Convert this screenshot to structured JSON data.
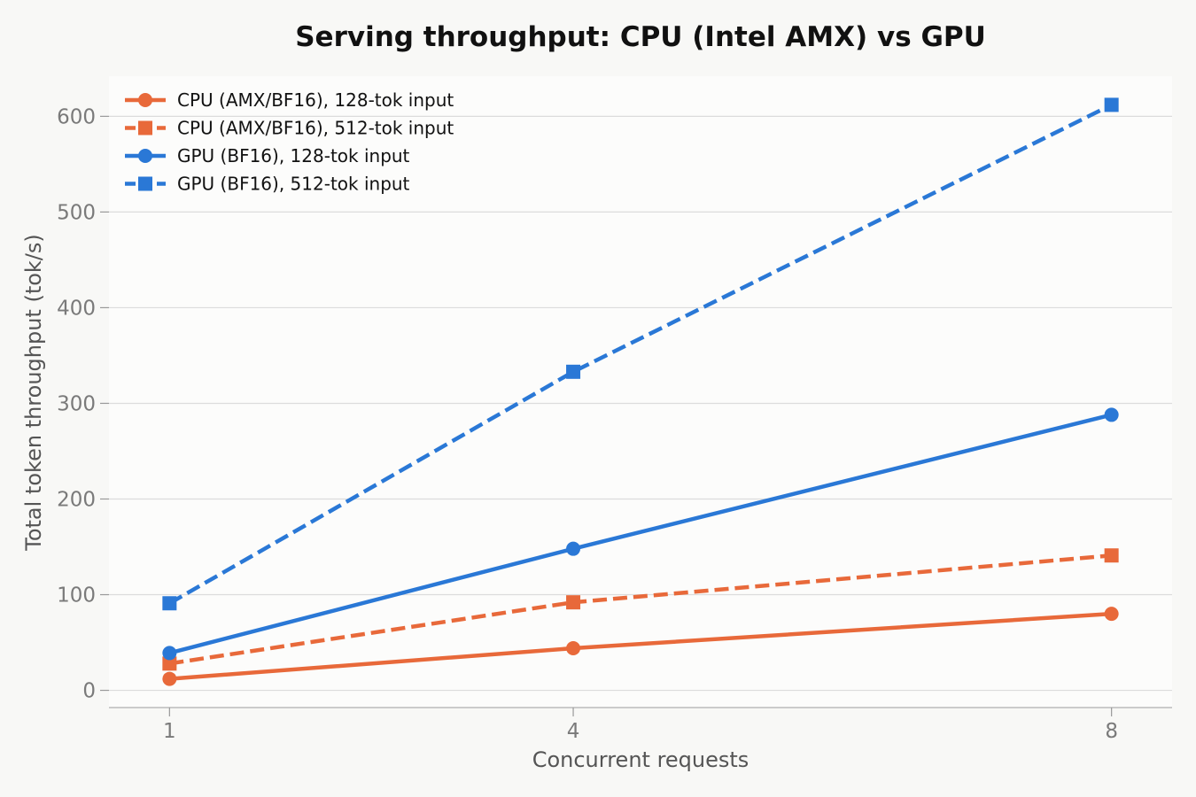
{
  "chart_data": {
    "type": "line",
    "title": "Serving throughput: CPU (Intel AMX) vs GPU",
    "xlabel": "Concurrent requests",
    "ylabel": "Total token throughput (tok/s)",
    "x": [
      1,
      4,
      8
    ],
    "x_tick_labels": [
      "1",
      "4",
      "8"
    ],
    "y_ticks": [
      0,
      100,
      200,
      300,
      400,
      500,
      600
    ],
    "y_tick_labels": [
      "0",
      "100",
      "200",
      "300",
      "400",
      "500",
      "600"
    ],
    "ylim": [
      -18,
      642
    ],
    "xlim": [
      0.55,
      8.45
    ],
    "grid": "horizontal",
    "legend_position": "top-left",
    "series": [
      {
        "name": "CPU (AMX/BF16), 128-tok input",
        "values": [
          12,
          44,
          80
        ],
        "color": "#e8693a",
        "dash": "solid",
        "marker": "circle"
      },
      {
        "name": "CPU (AMX/BF16), 512-tok input",
        "values": [
          28,
          92,
          141
        ],
        "color": "#e8693a",
        "dash": "dashed",
        "marker": "square"
      },
      {
        "name": "GPU (BF16), 128-tok input",
        "values": [
          39,
          148,
          288
        ],
        "color": "#2a78d6",
        "dash": "solid",
        "marker": "circle"
      },
      {
        "name": "GPU (BF16), 512-tok input",
        "values": [
          91,
          333,
          612
        ],
        "color": "#2a78d6",
        "dash": "dashed",
        "marker": "square"
      }
    ]
  }
}
